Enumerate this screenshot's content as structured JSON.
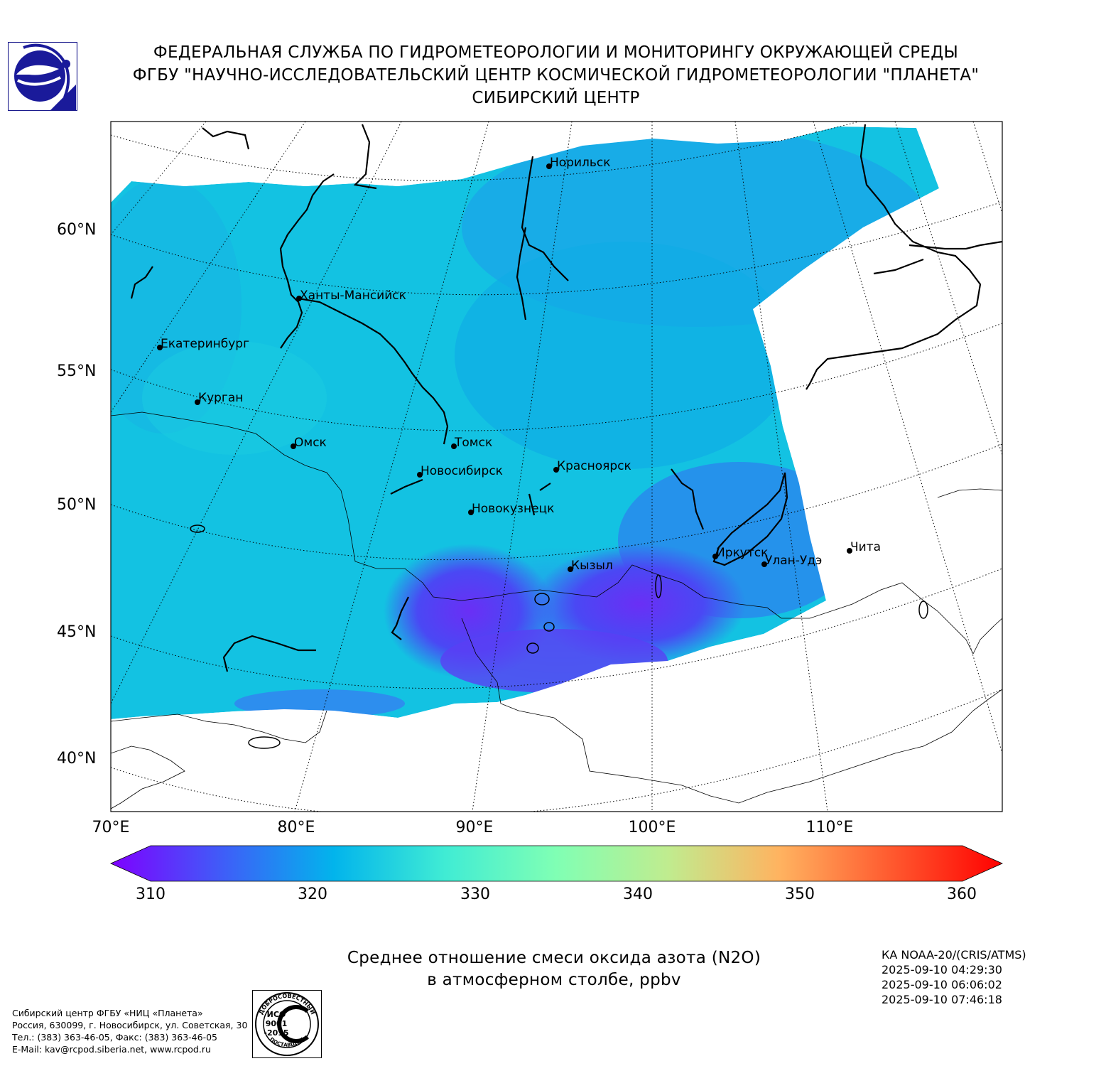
{
  "header": {
    "line1": "ФЕДЕРАЛЬНАЯ СЛУЖБА ПО ГИДРОМЕТЕОРОЛОГИИ И МОНИТОРИНГУ ОКРУЖАЮЩЕЙ СРЕДЫ",
    "line2": "ФГБУ \"НАУЧНО-ИССЛЕДОВАТЕЛЬСКИЙ ЦЕНТР КОСМИЧЕСКОЙ ГИДРОМЕТЕОРОЛОГИИ \"ПЛАНЕТА\"",
    "line3": "СИБИРСКИЙ ЦЕНТР"
  },
  "map": {
    "lat_labels": [
      "60°N",
      "55°N",
      "50°N",
      "45°N",
      "40°N"
    ],
    "lon_labels": [
      "70°E",
      "80°E",
      "90°E",
      "100°E",
      "110°E"
    ],
    "cities": [
      {
        "name": "Норильск"
      },
      {
        "name": "Ханты-Мансийск"
      },
      {
        "name": "Екатеринбург"
      },
      {
        "name": "Курган"
      },
      {
        "name": "Омск"
      },
      {
        "name": "Томск"
      },
      {
        "name": "Новосибирск"
      },
      {
        "name": "Красноярск"
      },
      {
        "name": "Новокузнецк"
      },
      {
        "name": "Кызыл"
      },
      {
        "name": "Иркутск"
      },
      {
        "name": "Улан-Удэ"
      },
      {
        "name": "Чита"
      }
    ]
  },
  "colorbar": {
    "ticks": [
      "310",
      "320",
      "330",
      "340",
      "350",
      "360"
    ],
    "colors": [
      "#7f00ff",
      "#3f5df8",
      "#02b4ec",
      "#40ecd4",
      "#80ffb4",
      "#c0ec8f",
      "#ffb360",
      "#ff5a2f",
      "#ff0000"
    ]
  },
  "caption": {
    "line1": "Среднее отношение смеси оксида азота (N2O)",
    "line2": "в атмосферном столбе, ppbv"
  },
  "satellite": {
    "name": "КА NOAA-20/(CRIS/ATMS)",
    "time1": "2025-09-10 04:29:30",
    "time2": "2025-09-10 06:06:02",
    "time3": "2025-09-10 07:46:18"
  },
  "contacts": {
    "line1": "Сибирский центр ФГБУ «НИЦ «Планета»",
    "line2": "Россия, 630099, г. Новосибирск, ул. Советская, 30",
    "line3": "Тел.: (383) 363-46-05, Факс: (383) 363-46-05",
    "line4": "E-Mail: kav@rcpod.siberia.net, www.rcpod.ru"
  },
  "iso_stamp": {
    "top": "ДОБРОСОВЕСТНЫЙ",
    "bottom": "ПОСТАВЩИК",
    "l1": "ИСО",
    "l2": "9001",
    "l3": "-2015"
  }
}
